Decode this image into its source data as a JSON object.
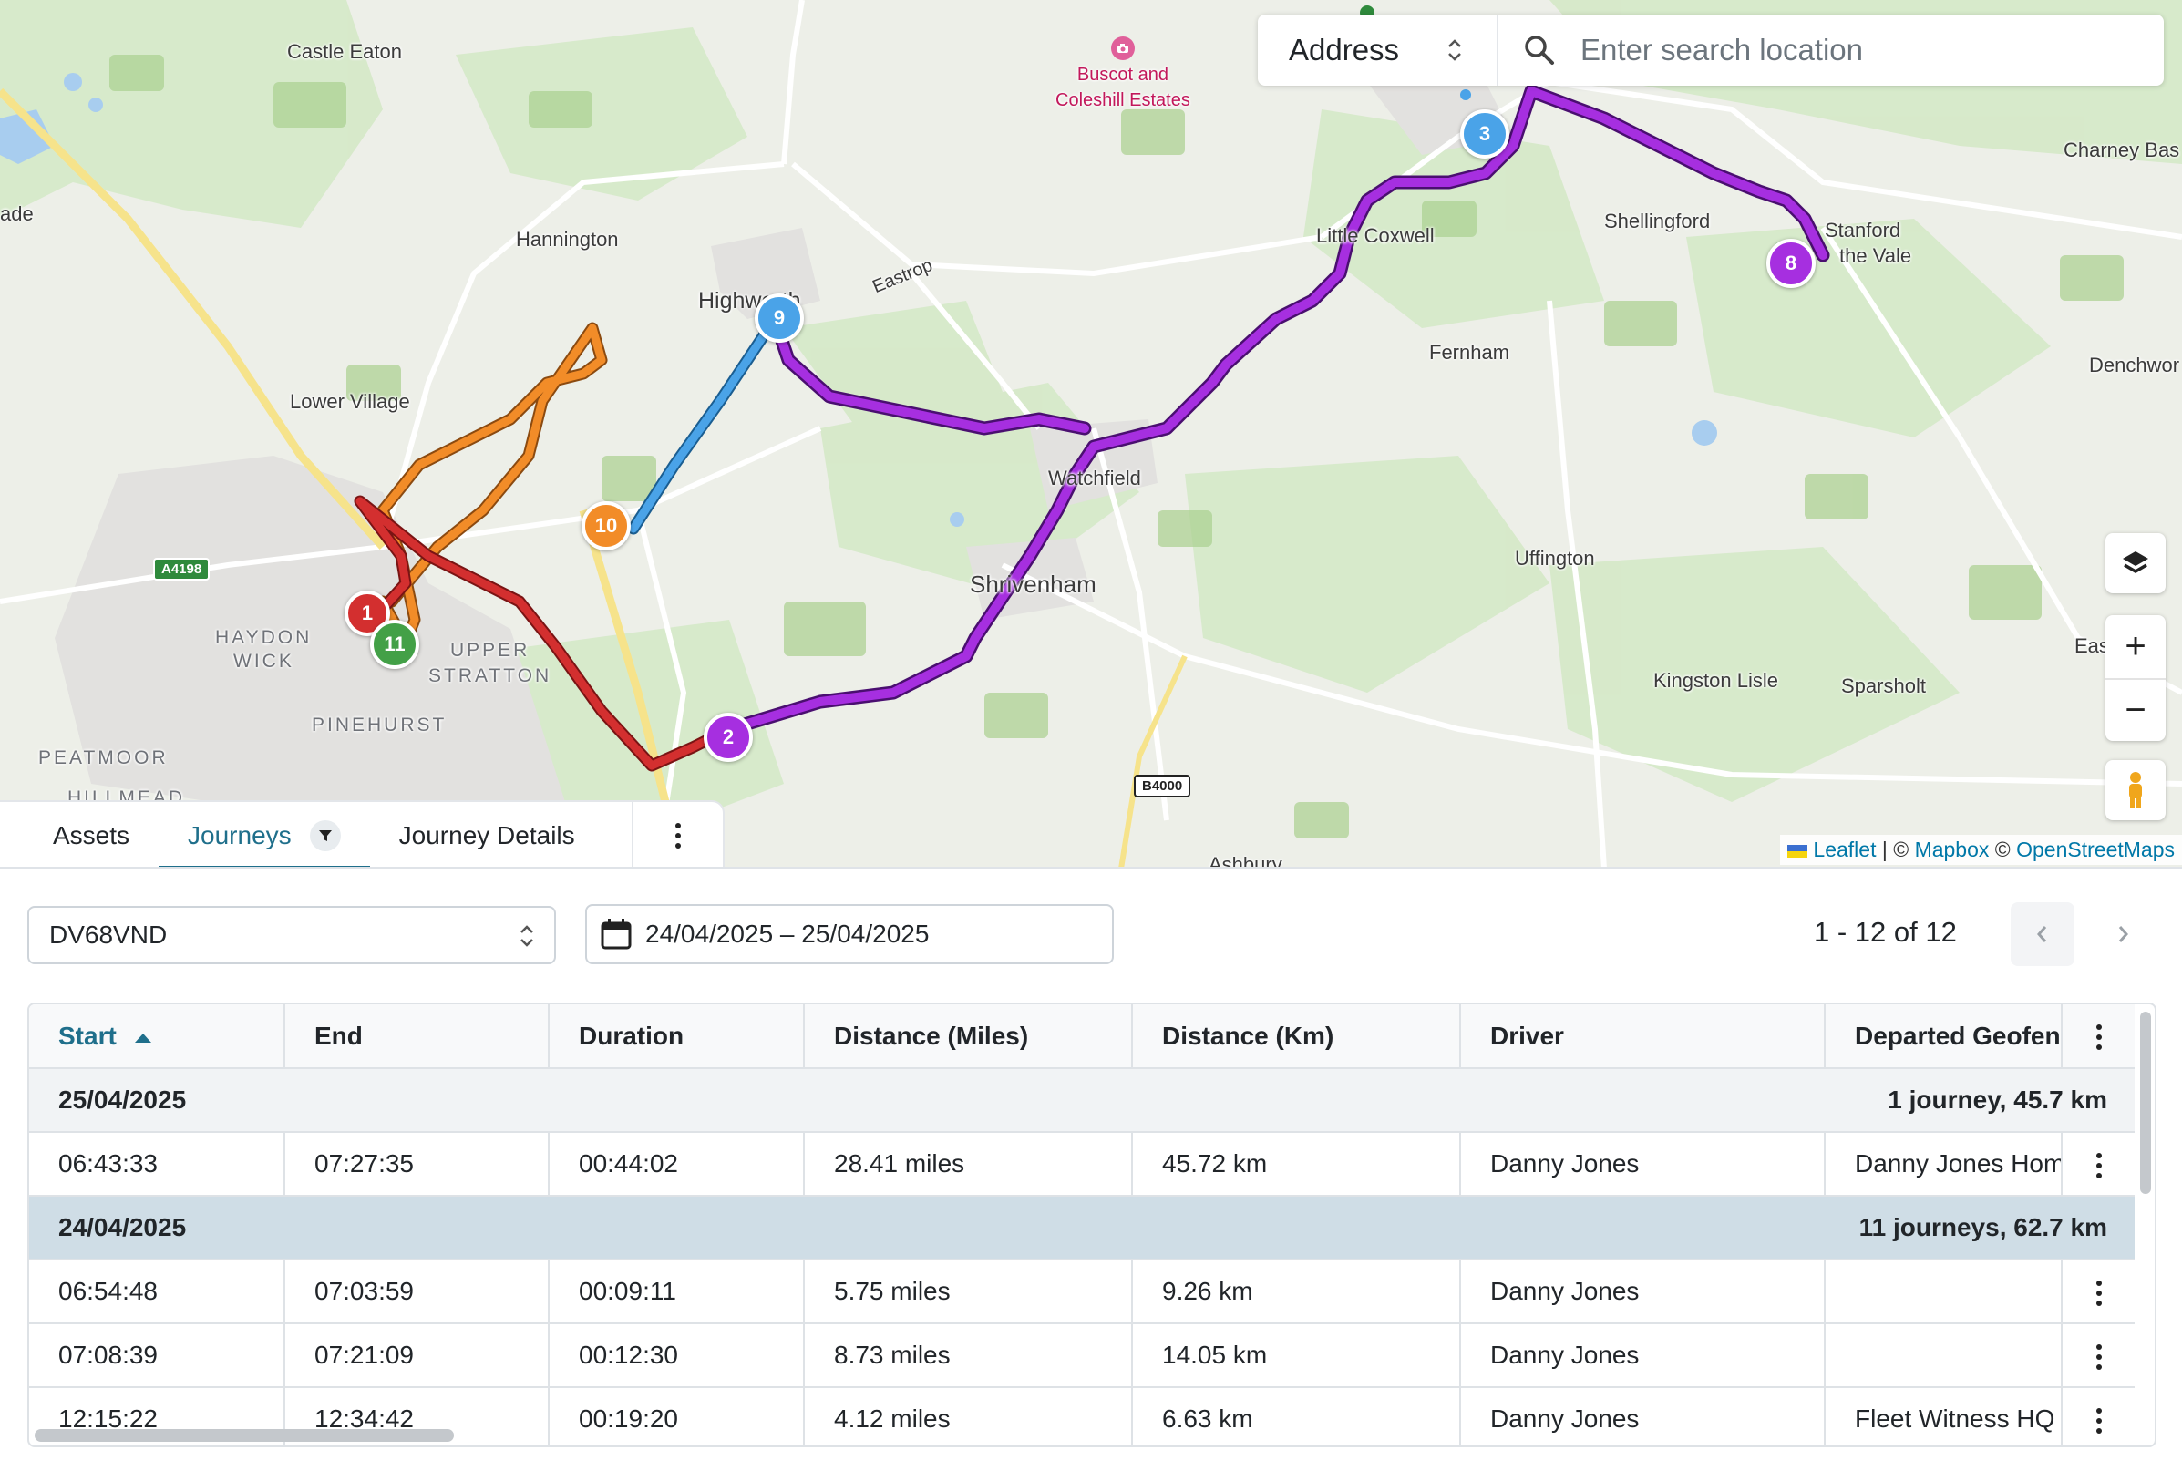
{
  "map": {
    "places": [
      {
        "name": "Castle Eaton",
        "kind": "town"
      },
      {
        "name": "Hannington",
        "kind": "town"
      },
      {
        "name": "Lower Village",
        "kind": "town"
      },
      {
        "name": "Highworth",
        "kind": "town"
      },
      {
        "name": "Eastrop",
        "kind": "town"
      },
      {
        "name": "Little Coxwell",
        "kind": "town"
      },
      {
        "name": "Shellingford",
        "kind": "town"
      },
      {
        "name": "Stanford",
        "kind": "town"
      },
      {
        "name": "the Vale",
        "kind": "town"
      },
      {
        "name": "Charney Bas",
        "kind": "town"
      },
      {
        "name": "Fernham",
        "kind": "town"
      },
      {
        "name": "Denchwor",
        "kind": "town"
      },
      {
        "name": "Watchfield",
        "kind": "town"
      },
      {
        "name": "Shrivenham",
        "kind": "town"
      },
      {
        "name": "Uffington",
        "kind": "town"
      },
      {
        "name": "Kingston Lisle",
        "kind": "town"
      },
      {
        "name": "Sparsholt",
        "kind": "town"
      },
      {
        "name": "Eas",
        "kind": "town"
      },
      {
        "name": "Ashbury",
        "kind": "town"
      },
      {
        "name": "ade",
        "kind": "town"
      },
      {
        "name": "HAYDON",
        "kind": "area"
      },
      {
        "name": "WICK",
        "kind": "area"
      },
      {
        "name": "UPPER",
        "kind": "area"
      },
      {
        "name": "STRATTON",
        "kind": "area"
      },
      {
        "name": "PINEHURST",
        "kind": "area"
      },
      {
        "name": "PEATMOOR",
        "kind": "area"
      },
      {
        "name": "HILLMEAD",
        "kind": "area"
      }
    ],
    "poi": {
      "line1": "Buscot and",
      "line2": "Coleshill Estates",
      "icon": "camera-icon"
    },
    "roads": [
      "A4198",
      "B4000"
    ],
    "markers": [
      {
        "label": "1",
        "color": "#d32f2f"
      },
      {
        "label": "11",
        "color": "#43a047"
      },
      {
        "label": "10",
        "color": "#f28c28"
      },
      {
        "label": "9",
        "color": "#4aa3e8"
      },
      {
        "label": "2",
        "color": "#a62fe0"
      },
      {
        "label": "3",
        "color": "#4aa3e8"
      },
      {
        "label": "8",
        "color": "#a62fe0"
      }
    ],
    "route_colors": {
      "red": "#d32f2f",
      "orange": "#f28c28",
      "blue": "#4aa3e8",
      "purple": "#a62fe0"
    },
    "search": {
      "type_label": "Address",
      "placeholder": "Enter search location"
    },
    "controls": {
      "layers_icon": "layers-icon",
      "zoom_in": "+",
      "zoom_out": "−",
      "pegman_icon": "person-icon"
    },
    "attribution": {
      "leaflet": "Leaflet",
      "sep1": "| ©",
      "mapbox": "Mapbox",
      "sep2": "©",
      "osm": "OpenStreetMaps"
    }
  },
  "tabs": [
    {
      "label": "Assets"
    },
    {
      "label": "Journeys",
      "active": true
    },
    {
      "label": "Journey Details"
    }
  ],
  "controls": {
    "vehicle": "DV68VND",
    "date_range": "24/04/2025 – 25/04/2025",
    "page_info": "1 - 12 of 12"
  },
  "table": {
    "columns": [
      "Start",
      "End",
      "Duration",
      "Distance (Miles)",
      "Distance (Km)",
      "Driver",
      "Departed Geofence"
    ],
    "groups": [
      {
        "date": "25/04/2025",
        "summary": "1 journey, 45.7 km",
        "rows": [
          [
            "06:43:33",
            "07:27:35",
            "00:44:02",
            "28.41 miles",
            "45.72 km",
            "Danny Jones",
            "Danny Jones Home"
          ]
        ]
      },
      {
        "date": "24/04/2025",
        "summary": "11 journeys, 62.7 km",
        "rows": [
          [
            "06:54:48",
            "07:03:59",
            "00:09:11",
            "5.75 miles",
            "9.26 km",
            "Danny Jones",
            ""
          ],
          [
            "07:08:39",
            "07:21:09",
            "00:12:30",
            "8.73 miles",
            "14.05 km",
            "Danny Jones",
            ""
          ],
          [
            "12:15:22",
            "12:34:42",
            "00:19:20",
            "4.12 miles",
            "6.63 km",
            "Danny Jones",
            "Fleet Witness HQ"
          ]
        ]
      }
    ]
  },
  "colors": {
    "accent": "#1f6f8b",
    "group_selected": "#cfdde6"
  }
}
